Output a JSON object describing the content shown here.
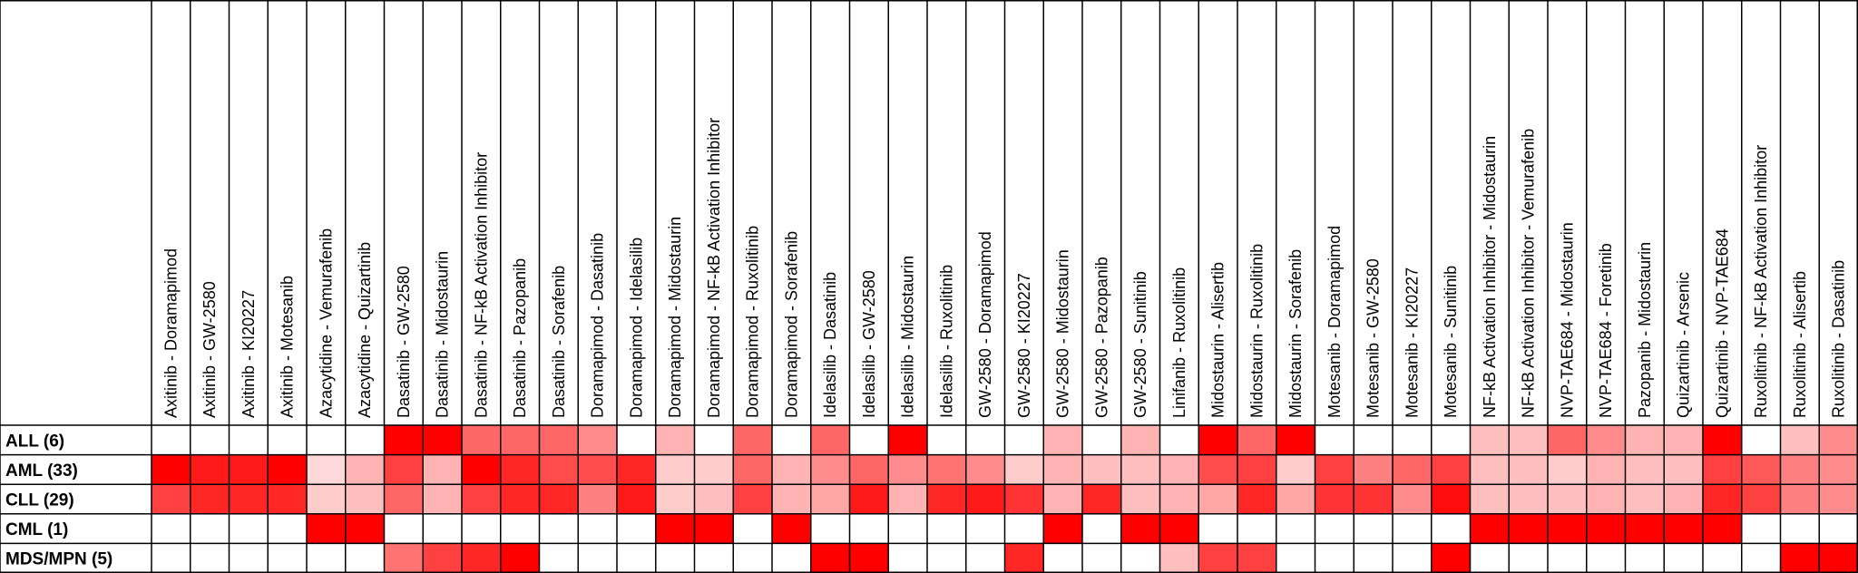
{
  "chart_data": {
    "type": "heatmap",
    "title": "",
    "xlabel": "",
    "ylabel": "",
    "color_scale": {
      "low": "#ffffff",
      "high": "#ff0000"
    },
    "rows": [
      "ALL (6)",
      "AML (33)",
      "CLL (29)",
      "CML (1)",
      "MDS/MPN (5)"
    ],
    "columns": [
      "Axitinib - Doramapimod",
      "Axitinib - GW-2580",
      "Axitinib - KI20227",
      "Axitinib - Motesanib",
      "Azacytidine - Vemurafenib",
      "Azacytidine - Quizartinib",
      "Dasatinib - GW-2580",
      "Dasatinib - Midostaurin",
      "Dasatinib - NF-kB Activation Inhibitor",
      "Dasatinib - Pazopanib",
      "Dasatinib - Sorafenib",
      "Doramapimod - Dasatinib",
      "Doramapimod - Idelasilib",
      "Doramapimod - Midostaurin",
      "Doramapimod - NF-kB Activation Inhibitor",
      "Doramapimod - Ruxolitinib",
      "Doramapimod - Sorafenib",
      "Idelasilib - Dasatinib",
      "Idelasilib - GW-2580",
      "Idelasilib - Midostaurin",
      "Idelasilib - Ruxolitinib",
      "GW-2580 - Doramapimod",
      "GW-2580 - KI20227",
      "GW-2580 - Midostaurin",
      "GW-2580 - Pazopanib",
      "GW-2580 - Sunitinib",
      "Linifanib - Ruxolitinib",
      "Midostaurin - Alisertib",
      "Midostaurin - Ruxolitinib",
      "Midostaurin - Sorafenib",
      "Motesanib - Doramapimod",
      "Motesanib - GW-2580",
      "Motesanib - KI20227",
      "Motesanib - Sunitinib",
      "NF-kB Activation Inhibitor - Midostaurin",
      "NF-kB Activation Inhibitor - Vemurafenib",
      "NVP-TAE684 - Midostaurin",
      "NVP-TAE684 - Foretinib",
      "Pazopanib - Midostaurin",
      "Quizartinib - Arsenic",
      "Quizartinib - NVP-TAE684",
      "Ruxolitinib - NF-kB Activation Inhibitor",
      "Ruxolitinib - Alisertib",
      "Ruxolitinib - Dasatinib"
    ],
    "values": [
      [
        0,
        0,
        0,
        0,
        0,
        0,
        1,
        1,
        0.6,
        0.6,
        0.6,
        0.45,
        0,
        0.3,
        0,
        0.6,
        0,
        0.6,
        0,
        1,
        0,
        0,
        0,
        0.3,
        0,
        0.3,
        0,
        1,
        0.6,
        1,
        0,
        0,
        0,
        0,
        0.25,
        0.25,
        0.6,
        0.45,
        0.3,
        0.3,
        1,
        0,
        0.25,
        0.45
      ],
      [
        1,
        0.9,
        0.9,
        1,
        0.15,
        0.3,
        0.75,
        0.3,
        1,
        0.85,
        0.7,
        0.7,
        0.85,
        0.2,
        0.2,
        0.6,
        0.3,
        0.45,
        0.6,
        0.45,
        0.55,
        0.45,
        0.2,
        0.3,
        0.25,
        0.25,
        0.3,
        0.7,
        0.75,
        0.2,
        0.75,
        0.5,
        0.6,
        0.75,
        0.25,
        0.25,
        0.2,
        0.3,
        0.25,
        0.25,
        0.75,
        0.65,
        0.5,
        0.45
      ],
      [
        0.75,
        0.85,
        0.85,
        0.85,
        0.2,
        0.25,
        0.6,
        0.3,
        0.75,
        0.85,
        0.85,
        0.5,
        0.9,
        0.2,
        0.25,
        0.75,
        0.3,
        0.35,
        0.9,
        0.3,
        0.85,
        0.9,
        0.8,
        0.3,
        0.85,
        0.25,
        0.3,
        0.35,
        0.85,
        0.35,
        0.8,
        0.8,
        0.45,
        0.95,
        0.25,
        0.25,
        0.25,
        0.3,
        0.25,
        0.3,
        0.85,
        0.75,
        0.5,
        0.45
      ],
      [
        0,
        0,
        0,
        0,
        1,
        1,
        0,
        0,
        0,
        0,
        0,
        0,
        0,
        1,
        1,
        0,
        1,
        0,
        0,
        0,
        0,
        0,
        0,
        1,
        0,
        1,
        1,
        0,
        0,
        0,
        0,
        0,
        0,
        0,
        1,
        1,
        1,
        1,
        1,
        1,
        1,
        0,
        0,
        0
      ],
      [
        0,
        0,
        0,
        0,
        0,
        0,
        0.55,
        0.75,
        0.85,
        1,
        0,
        0,
        0,
        0,
        0,
        0,
        0,
        1,
        1,
        0,
        0,
        0,
        0.85,
        0,
        0,
        0,
        0.25,
        0.75,
        0.75,
        0,
        0,
        0,
        0,
        1,
        0,
        0,
        0,
        0,
        0,
        0,
        0,
        0,
        1,
        1
      ]
    ]
  }
}
